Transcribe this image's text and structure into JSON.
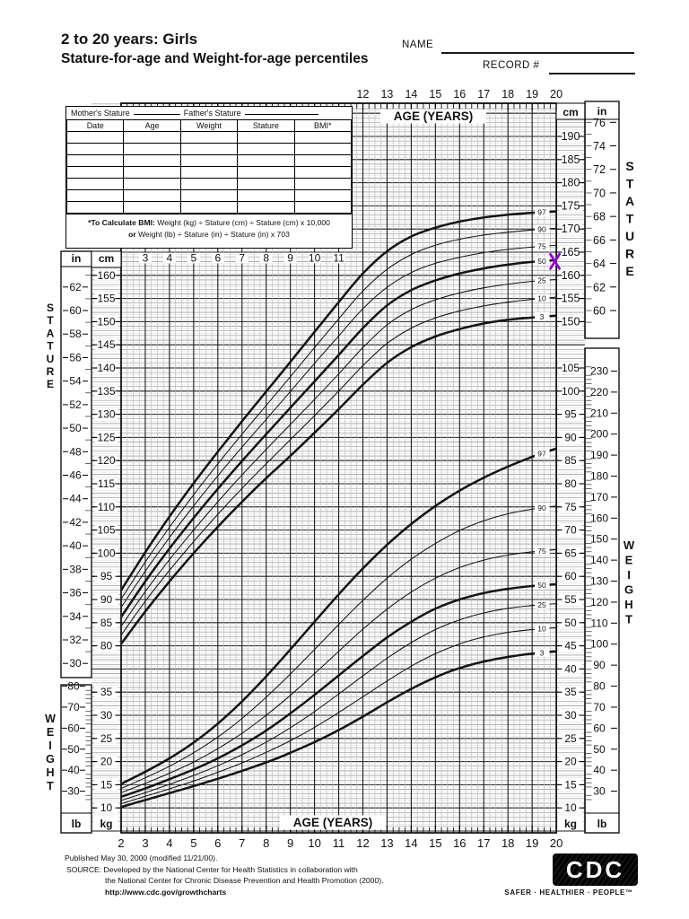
{
  "colors": {
    "ink": "#111111",
    "marker_purple": "#9400d3"
  },
  "header": {
    "title_line1": "2 to 20 years: Girls",
    "title_line2": "Stature-for-age and Weight-for-age percentiles",
    "name_label": "NAME",
    "record_label": "RECORD #"
  },
  "patient_table": {
    "mother_label": "Mother's Stature",
    "father_label": "Father's Stature",
    "columns": [
      "Date",
      "Age",
      "Weight",
      "Stature",
      "BMI*"
    ],
    "empty_rows": 7,
    "bmi_bold1": "*To Calculate BMI:",
    "bmi_rest1": " Weight (kg) ÷ Stature (cm) ÷ Stature (cm) x 10,000",
    "bmi_bold2": "or",
    "bmi_rest2": " Weight (lb) ÷ Stature (in) ÷ Stature (in) x 703"
  },
  "chart_data": {
    "type": "line",
    "title": "2 to 20 years: Girls — Stature-for-age and Weight-for-age percentiles (CDC growth chart)",
    "age_axis_label": "AGE (YEARS)",
    "age_years": [
      2,
      3,
      4,
      5,
      6,
      7,
      8,
      9,
      10,
      11,
      12,
      13,
      14,
      15,
      16,
      17,
      18,
      19,
      20
    ],
    "age_ticks_top": [
      12,
      13,
      14,
      15,
      16,
      17,
      18,
      19,
      20
    ],
    "age_ticks_bottom": [
      2,
      3,
      4,
      5,
      6,
      7,
      8,
      9,
      10,
      11,
      12,
      13,
      14,
      15,
      16,
      17,
      18,
      19,
      20
    ],
    "age_ticks_inner": [
      3,
      4,
      5,
      6,
      7,
      8,
      9,
      10,
      11
    ],
    "units": {
      "cm": "cm",
      "in": "in",
      "kg": "kg",
      "lb": "lb"
    },
    "percentile_labels": [
      "97",
      "90",
      "75",
      "50",
      "25",
      "10",
      "3"
    ],
    "stature": {
      "side_label": "STATURE",
      "cm_ticks_left": [
        160,
        155,
        150,
        145,
        140,
        135,
        130,
        125,
        120,
        115,
        110,
        105,
        100,
        95,
        90,
        85,
        80
      ],
      "in_ticks_left": [
        62,
        60,
        58,
        56,
        54,
        52,
        50,
        48,
        46,
        44,
        42,
        40,
        38,
        36,
        34,
        32,
        30
      ],
      "cm_ticks_right": [
        190,
        185,
        180,
        175,
        170,
        165,
        160,
        155,
        150
      ],
      "in_ticks_right": [
        76,
        74,
        72,
        70,
        68,
        66,
        64,
        62,
        60
      ],
      "series": [
        {
          "p": "97",
          "thick": true,
          "cm": [
            92.0,
            100.2,
            107.9,
            115.1,
            121.9,
            128.5,
            134.9,
            141.3,
            147.8,
            154.2,
            160.4,
            165.2,
            168.4,
            170.3,
            171.6,
            172.5,
            173.1,
            173.5,
            173.8
          ]
        },
        {
          "p": "90",
          "thick": false,
          "cm": [
            90.1,
            98.1,
            105.6,
            112.6,
            119.3,
            125.7,
            131.9,
            138.1,
            144.4,
            150.6,
            156.6,
            161.3,
            164.5,
            166.5,
            167.8,
            168.7,
            169.3,
            169.8,
            170.2
          ]
        },
        {
          "p": "75",
          "thick": false,
          "cm": [
            88.3,
            96.1,
            103.4,
            110.2,
            116.7,
            122.9,
            128.9,
            134.9,
            141.0,
            146.9,
            152.8,
            157.4,
            160.6,
            162.6,
            163.9,
            164.9,
            165.6,
            166.1,
            166.5
          ]
        },
        {
          "p": "50",
          "thick": true,
          "cm": [
            86.2,
            93.9,
            101.0,
            107.6,
            113.9,
            119.9,
            125.7,
            131.4,
            137.1,
            142.8,
            148.6,
            153.5,
            156.8,
            158.9,
            160.4,
            161.5,
            162.3,
            162.9,
            163.3
          ]
        },
        {
          "p": "25",
          "thick": false,
          "cm": [
            84.2,
            91.7,
            98.6,
            105.0,
            111.1,
            116.9,
            122.4,
            127.8,
            133.2,
            138.7,
            144.4,
            149.3,
            152.6,
            154.7,
            156.2,
            157.3,
            158.1,
            158.7,
            159.1
          ]
        },
        {
          "p": "10",
          "thick": false,
          "cm": [
            82.3,
            89.6,
            96.3,
            102.5,
            108.4,
            114.0,
            119.3,
            124.5,
            129.7,
            135.0,
            140.5,
            145.3,
            148.6,
            150.8,
            152.3,
            153.4,
            154.2,
            154.8,
            155.3
          ]
        },
        {
          "p": "3",
          "thick": true,
          "cm": [
            80.4,
            87.4,
            93.9,
            100.0,
            105.7,
            111.1,
            116.2,
            121.0,
            126.0,
            131.1,
            136.4,
            141.1,
            144.5,
            146.8,
            148.4,
            149.6,
            150.4,
            150.9,
            151.3
          ]
        }
      ]
    },
    "weight": {
      "side_label": "WEIGHT",
      "kg_ticks_left": [
        35,
        30,
        25,
        20,
        15,
        10
      ],
      "lb_ticks_left": [
        80,
        70,
        60,
        50,
        40,
        30
      ],
      "kg_ticks_right": [
        105,
        100,
        95,
        90,
        85,
        80,
        75,
        70,
        65,
        60,
        55,
        50,
        45,
        40,
        35,
        30,
        25,
        20,
        15,
        10
      ],
      "lb_ticks_right": [
        230,
        220,
        210,
        200,
        190,
        180,
        170,
        160,
        150,
        140,
        130,
        120,
        110,
        100,
        90,
        80,
        70,
        60,
        50,
        40,
        30
      ],
      "series": [
        {
          "p": "97",
          "thick": true,
          "kg": [
            15.2,
            17.8,
            20.7,
            24.1,
            28.2,
            33.0,
            38.4,
            44.2,
            50.2,
            56.1,
            61.7,
            66.8,
            71.3,
            75.2,
            78.5,
            81.3,
            83.7,
            85.8,
            87.6
          ]
        },
        {
          "p": "90",
          "thick": false,
          "kg": [
            14.2,
            16.5,
            19.0,
            21.9,
            25.3,
            29.3,
            33.9,
            38.9,
            44.2,
            49.6,
            54.8,
            59.6,
            63.7,
            67.1,
            69.9,
            72.0,
            73.5,
            74.5,
            75.2
          ]
        },
        {
          "p": "75",
          "thick": false,
          "kg": [
            13.3,
            15.3,
            17.5,
            19.9,
            22.8,
            26.1,
            30.0,
            34.3,
            39.0,
            43.8,
            48.6,
            52.9,
            56.6,
            59.6,
            61.9,
            63.5,
            64.6,
            65.3,
            65.8
          ]
        },
        {
          "p": "50",
          "thick": true,
          "kg": [
            12.4,
            14.2,
            16.2,
            18.3,
            20.7,
            23.5,
            26.7,
            30.4,
            34.4,
            38.6,
            42.8,
            46.8,
            50.2,
            53.0,
            55.0,
            56.4,
            57.3,
            57.9,
            58.3
          ]
        },
        {
          "p": "25",
          "thick": false,
          "kg": [
            11.6,
            13.3,
            15.1,
            17.0,
            19.1,
            21.5,
            24.2,
            27.3,
            30.8,
            34.6,
            38.5,
            42.3,
            45.7,
            48.5,
            50.6,
            52.1,
            53.1,
            53.7,
            54.1
          ]
        },
        {
          "p": "10",
          "thick": false,
          "kg": [
            10.9,
            12.5,
            14.1,
            15.8,
            17.7,
            19.7,
            22.0,
            24.5,
            27.4,
            30.6,
            34.0,
            37.4,
            40.6,
            43.3,
            45.4,
            46.9,
            47.9,
            48.5,
            48.9
          ]
        },
        {
          "p": "3",
          "thick": true,
          "kg": [
            10.2,
            11.7,
            13.2,
            14.7,
            16.3,
            18.0,
            19.8,
            21.9,
            24.2,
            26.8,
            29.7,
            32.8,
            35.7,
            38.2,
            40.2,
            41.6,
            42.6,
            43.3,
            43.8
          ]
        }
      ]
    },
    "marker": {
      "shape": "x",
      "color": "#9400d3",
      "age": 20,
      "stature_cm": 163
    }
  },
  "footer": {
    "published": "Published May 30, 2000 (modified 11/21/00).",
    "source_label": "SOURCE:",
    "source_line1": "Developed by the National Center for Health Statistics in collaboration with",
    "source_line2": "the National Center for Chronic Disease Prevention and Health Promotion (2000).",
    "url": "http://www.cdc.gov/growthcharts",
    "cdc_logo": "CDC",
    "tagline": "SAFER · HEALTHIER · PEOPLE™"
  }
}
